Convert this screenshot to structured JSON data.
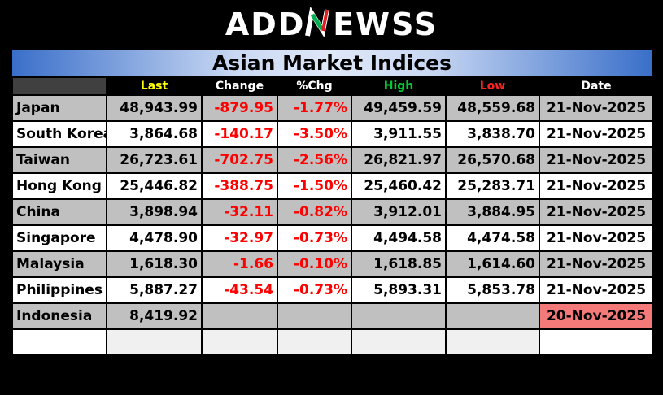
{
  "logo": {
    "prefix": "ADD",
    "n_letter": "N",
    "suffix": "EWSS"
  },
  "title": "Asian Market Indices",
  "colors": {
    "last": "#ffff00",
    "change": "#ffffff",
    "pchg": "#ffffff",
    "high": "#00cc33",
    "low": "#ff2222",
    "date": "#ffffff"
  },
  "headers": {
    "name": "",
    "last": "Last",
    "change": "Change",
    "pchg": "%Chg",
    "high": "High",
    "low": "Low",
    "date": "Date"
  },
  "rows": [
    {
      "name": "Japan",
      "last": "48,943.99",
      "change": "-879.95",
      "pchg": "-1.77%",
      "high": "49,459.59",
      "low": "48,559.68",
      "date": "21-Nov-2025"
    },
    {
      "name": "South Korea",
      "last": "3,864.68",
      "change": "-140.17",
      "pchg": "-3.50%",
      "high": "3,911.55",
      "low": "3,838.70",
      "date": "21-Nov-2025"
    },
    {
      "name": "Taiwan",
      "last": "26,723.61",
      "change": "-702.75",
      "pchg": "-2.56%",
      "high": "26,821.97",
      "low": "26,570.68",
      "date": "21-Nov-2025"
    },
    {
      "name": "Hong Kong",
      "last": "25,446.82",
      "change": "-388.75",
      "pchg": "-1.50%",
      "high": "25,460.42",
      "low": "25,283.71",
      "date": "21-Nov-2025"
    },
    {
      "name": "China",
      "last": "3,898.94",
      "change": "-32.11",
      "pchg": "-0.82%",
      "high": "3,912.01",
      "low": "3,884.95",
      "date": "21-Nov-2025"
    },
    {
      "name": "Singapore",
      "last": "4,478.90",
      "change": "-32.97",
      "pchg": "-0.73%",
      "high": "4,494.58",
      "low": "4,474.58",
      "date": "21-Nov-2025"
    },
    {
      "name": "Malaysia",
      "last": "1,618.30",
      "change": "-1.66",
      "pchg": "-0.10%",
      "high": "1,618.85",
      "low": "1,614.60",
      "date": "21-Nov-2025"
    },
    {
      "name": "Philippines",
      "last": "5,887.27",
      "change": "-43.54",
      "pchg": "-0.73%",
      "high": "5,893.31",
      "low": "5,853.78",
      "date": "21-Nov-2025"
    },
    {
      "name": "Indonesia",
      "last": "8,419.92",
      "change": "",
      "pchg": "",
      "high": "",
      "low": "",
      "date": "20-Nov-2025"
    }
  ]
}
